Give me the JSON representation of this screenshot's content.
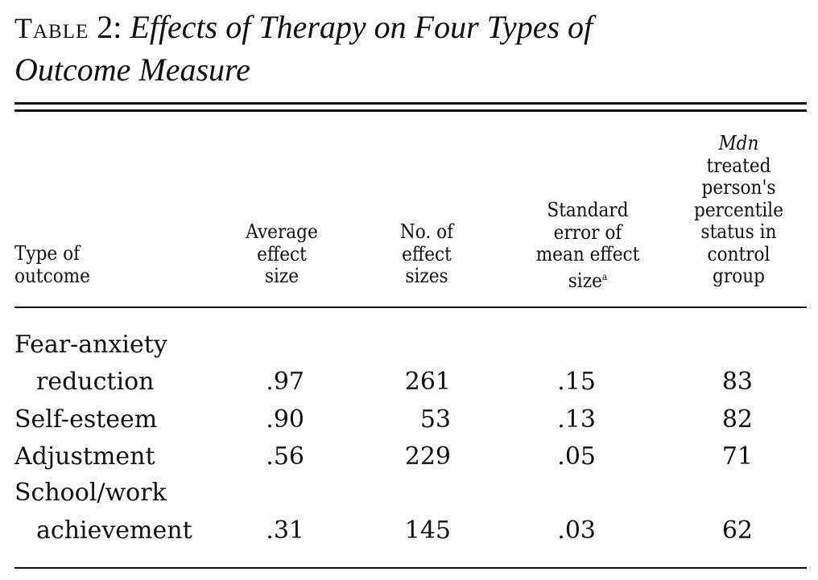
{
  "title": {
    "label": "Table",
    "number": "2",
    "separator": ":",
    "text_line1": "Effects of Therapy on Four Types of",
    "text_line2": "Outcome Measure"
  },
  "headers": {
    "type": [
      "Type of",
      "outcome"
    ],
    "avg": [
      "Average",
      "effect",
      "size"
    ],
    "count": [
      "No. of",
      "effect",
      "sizes"
    ],
    "se": [
      "Standard",
      "error of",
      "mean effect",
      "size"
    ],
    "se_footnote": "a",
    "mdn": [
      "Mdn",
      "treated",
      "person's",
      "percentile",
      "status in",
      "control",
      "group"
    ]
  },
  "rows": [
    {
      "label": [
        "Fear-anxiety",
        "reduction"
      ],
      "avg": ".97",
      "count": "261",
      "se": ".15",
      "mdn": "83"
    },
    {
      "label": [
        "Self-esteem"
      ],
      "avg": ".90",
      "count": "53",
      "se": ".13",
      "mdn": "82"
    },
    {
      "label": [
        "Adjustment"
      ],
      "avg": ".56",
      "count": "229",
      "se": ".05",
      "mdn": "71"
    },
    {
      "label": [
        "School/work",
        "achievement"
      ],
      "avg": ".31",
      "count": "145",
      "se": ".03",
      "mdn": "62"
    }
  ]
}
